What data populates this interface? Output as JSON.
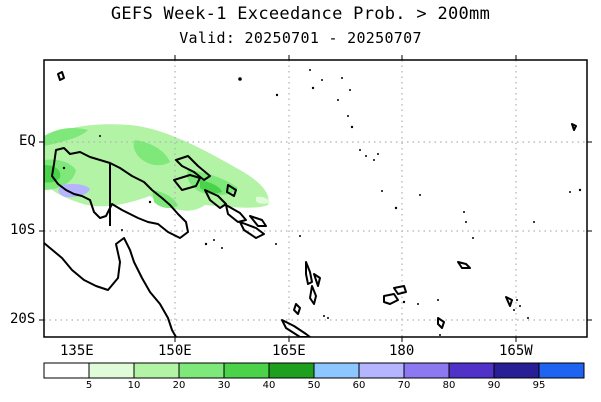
{
  "title": "GEFS Week-1 Exceedance Prob. > 200mm",
  "subtitle": "Valid: 20250701 - 20250707",
  "lat_labels": [
    "EQ",
    "10S",
    "20S"
  ],
  "lon_labels": [
    "135E",
    "150E",
    "165E",
    "180",
    "165W"
  ],
  "colorbar": {
    "labels": [
      "5",
      "10",
      "20",
      "30",
      "40",
      "50",
      "60",
      "70",
      "80",
      "90",
      "95"
    ],
    "colors": [
      "#ffffff",
      "#e0fbd8",
      "#b3f3a6",
      "#7ee87a",
      "#4bd24b",
      "#1ea01e",
      "#8cc8ff",
      "#b4b4ff",
      "#8c78f0",
      "#5032c8",
      "#281e96",
      "#1e64f0"
    ]
  },
  "map": {
    "grid": "dotted",
    "lon_range": [
      "132E",
      "172W"
    ],
    "lat_range": [
      "21S",
      "9N"
    ]
  }
}
